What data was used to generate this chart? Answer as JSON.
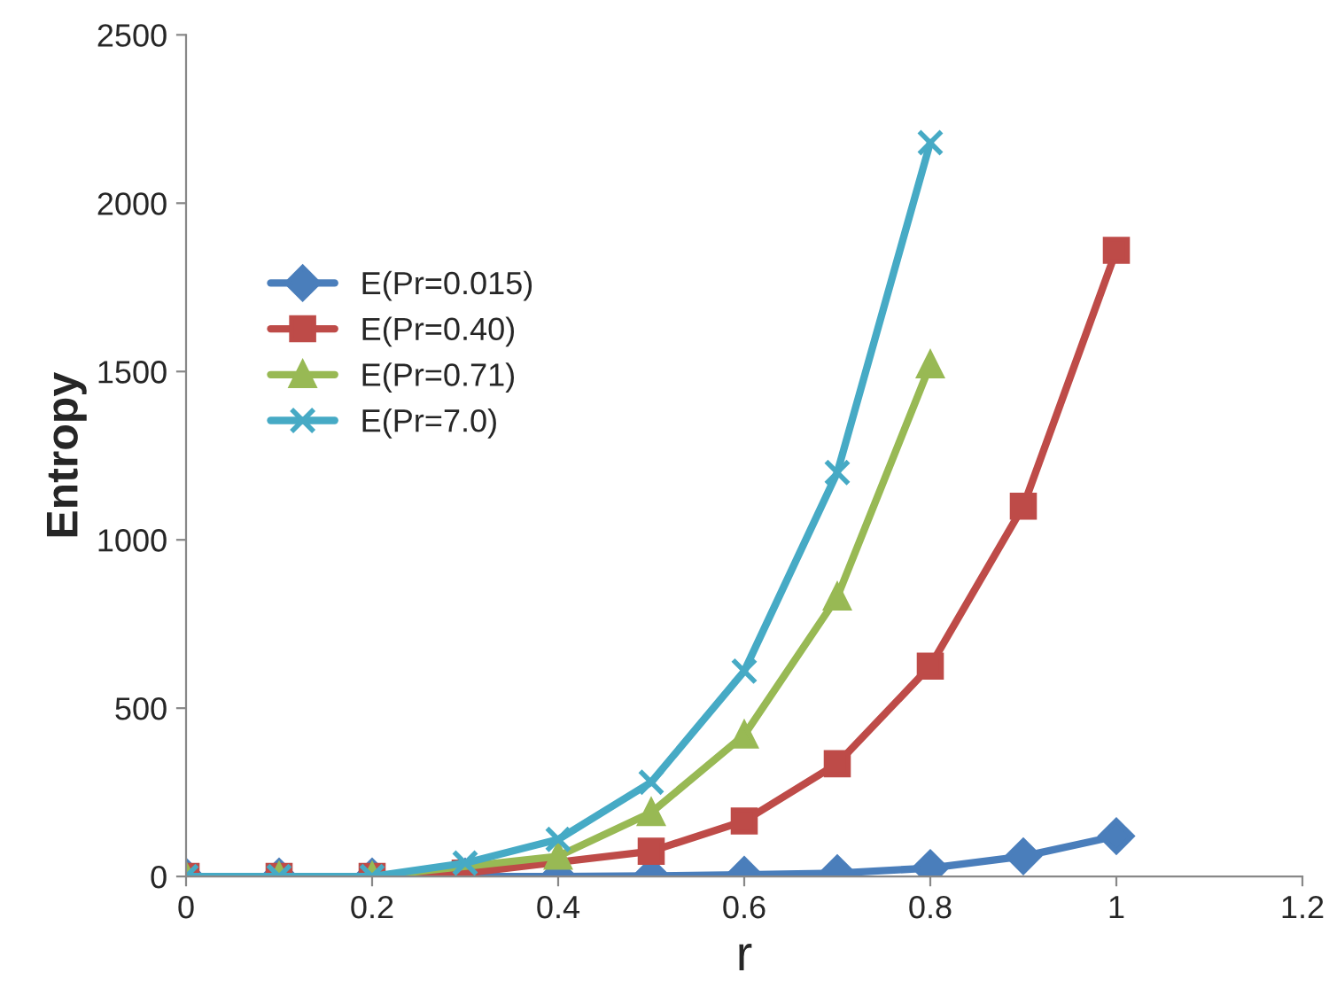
{
  "chart_data": {
    "type": "line",
    "xlabel": "r",
    "ylabel": "Entropy",
    "x": [
      0,
      0.1,
      0.2,
      0.3,
      0.4,
      0.5,
      0.6,
      0.7,
      0.8,
      0.9,
      1.0
    ],
    "xlim": [
      0,
      1.2
    ],
    "xticks": [
      0,
      0.2,
      0.4,
      0.6,
      0.8,
      1,
      1.2
    ],
    "ylim": [
      0,
      2500
    ],
    "yticks": [
      0,
      500,
      1000,
      1500,
      2000,
      2500
    ],
    "grid": false,
    "legend": "left",
    "series": [
      {
        "name": "E(Pr=0.015)",
        "color": "#4a7ebb",
        "marker": "diamond",
        "values": [
          0,
          0,
          0,
          0,
          0,
          2,
          5,
          10,
          25,
          60,
          120
        ]
      },
      {
        "name": "E(Pr=0.40)",
        "color": "#be4b48",
        "marker": "square",
        "values": [
          0,
          0,
          0,
          10,
          null,
          75,
          165,
          335,
          625,
          1100,
          1860
        ]
      },
      {
        "name": "E(Pr=0.71)",
        "color": "#98b954",
        "marker": "triangle",
        "values": [
          0,
          0,
          0,
          null,
          60,
          190,
          420,
          830,
          1520,
          null,
          null
        ]
      },
      {
        "name": "E(Pr=7.0)",
        "color": "#46aac5",
        "marker": "cross",
        "values": [
          0,
          0,
          0,
          40,
          110,
          280,
          610,
          1200,
          2180,
          null,
          null
        ]
      }
    ]
  }
}
